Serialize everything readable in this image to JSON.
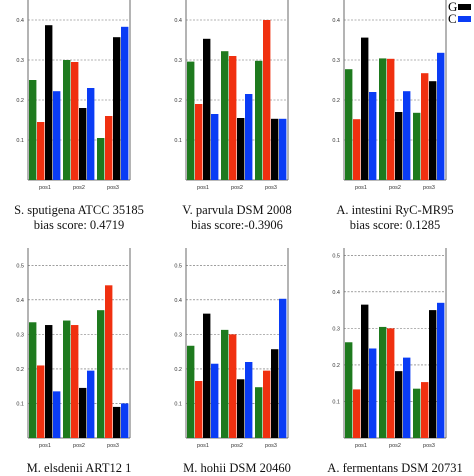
{
  "legend": [
    {
      "label": "G",
      "color": "#000000"
    },
    {
      "label": "C",
      "color": "#0a3cf5"
    }
  ],
  "colors": {
    "A": "#1e7a1e",
    "T": "#f03010",
    "G": "#000000",
    "C": "#0a3cf5"
  },
  "captions": [
    {
      "name": "S. sputigena ATCC 35185",
      "score": "bias score: 0.4719"
    },
    {
      "name": "V. parvula DSM 2008",
      "score": "bias score:-0.3906"
    },
    {
      "name": "A. intestini RyC-MR95",
      "score": "bias score: 0.1285"
    },
    {
      "name": "M. elsdenii ART12 1",
      "score": ""
    },
    {
      "name": "M. hohii DSM 20460",
      "score": ""
    },
    {
      "name": "A. fermentans DSM 20731",
      "score": ""
    }
  ],
  "chart_data": [
    {
      "type": "bar",
      "categories": [
        "pos1",
        "pos2",
        "pos3"
      ],
      "ylim": [
        0,
        0.45
      ],
      "yticks": [
        "0.1",
        "0.2",
        "0.3",
        "0.4"
      ],
      "series": [
        [
          0.25,
          0.145,
          0.387,
          0.222
        ],
        [
          0.3,
          0.295,
          0.18,
          0.23
        ],
        [
          0.105,
          0.16,
          0.357,
          0.383
        ]
      ]
    },
    {
      "type": "bar",
      "categories": [
        "pos1",
        "pos2",
        "pos3"
      ],
      "ylim": [
        0,
        0.45
      ],
      "yticks": [
        "0.1",
        "0.2",
        "0.3",
        "0.4"
      ],
      "series": [
        [
          0.296,
          0.19,
          0.353,
          0.165
        ],
        [
          0.322,
          0.31,
          0.155,
          0.215
        ],
        [
          0.298,
          0.4,
          0.153,
          0.153
        ]
      ]
    },
    {
      "type": "bar",
      "categories": [
        "pos1",
        "pos2",
        "pos3"
      ],
      "ylim": [
        0,
        0.45
      ],
      "yticks": [
        "0.1",
        "0.2",
        "0.3",
        "0.4"
      ],
      "series": [
        [
          0.277,
          0.152,
          0.356,
          0.22
        ],
        [
          0.304,
          0.303,
          0.17,
          0.222
        ],
        [
          0.168,
          0.267,
          0.247,
          0.318
        ]
      ]
    },
    {
      "type": "bar",
      "categories": [
        "pos1",
        "pos2",
        "pos3"
      ],
      "ylim": [
        0,
        0.55
      ],
      "yticks": [
        "0.1",
        "0.2",
        "0.3",
        "0.4",
        "0.5"
      ],
      "series": [
        [
          0.335,
          0.21,
          0.327,
          0.135
        ],
        [
          0.34,
          0.327,
          0.145,
          0.195
        ],
        [
          0.37,
          0.442,
          0.09,
          0.1
        ]
      ]
    },
    {
      "type": "bar",
      "categories": [
        "pos1",
        "pos2",
        "pos3"
      ],
      "ylim": [
        0,
        0.55
      ],
      "yticks": [
        "0.1",
        "0.2",
        "0.3",
        "0.4",
        "0.5"
      ],
      "series": [
        [
          0.267,
          0.165,
          0.36,
          0.215
        ],
        [
          0.313,
          0.3,
          0.17,
          0.22
        ],
        [
          0.147,
          0.195,
          0.257,
          0.403
        ]
      ]
    },
    {
      "type": "bar",
      "categories": [
        "pos1",
        "pos2",
        "pos3"
      ],
      "ylim": [
        0,
        0.52
      ],
      "yticks": [
        "0.1",
        "0.2",
        "0.3",
        "0.4",
        "0.5"
      ],
      "series": [
        [
          0.262,
          0.133,
          0.365,
          0.245
        ],
        [
          0.304,
          0.3,
          0.183,
          0.22
        ],
        [
          0.135,
          0.153,
          0.35,
          0.37
        ]
      ]
    }
  ]
}
